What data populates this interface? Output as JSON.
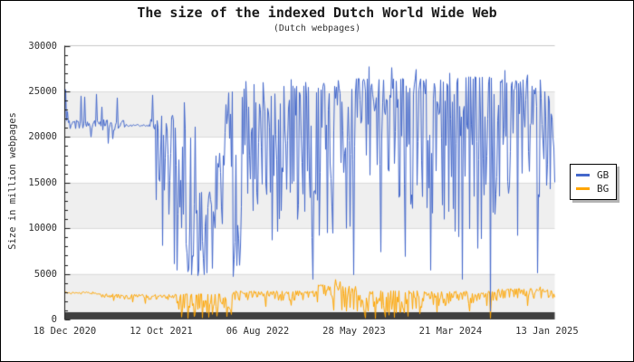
{
  "chart_data": {
    "type": "line",
    "title": "The size of the indexed Dutch World Wide Web",
    "subtitle": "(Dutch webpages)",
    "ylabel": "Size in million webpages",
    "ylim": [
      0,
      30000
    ],
    "ytick_interval": 5000,
    "yminor_interval": 1000,
    "ytick_labels": [
      "0",
      "5000",
      "10000",
      "15000",
      "20000",
      "25000",
      "30000"
    ],
    "x_span_days": 1514,
    "xticks": [
      {
        "day": 0,
        "label": "18 Dec 2020"
      },
      {
        "day": 298,
        "label": "12 Oct 2021"
      },
      {
        "day": 596,
        "label": "06 Aug 2022"
      },
      {
        "day": 894,
        "label": "28 May 2023"
      },
      {
        "day": 1192,
        "label": "21 Mar 2024"
      },
      {
        "day": 1490,
        "label": "13 Jan 2025"
      }
    ],
    "legend_position": "right-middle",
    "grid": "alternating horizontal bands every 5000",
    "series": [
      {
        "name": "GB",
        "color": "#4468cb",
        "seed": 1718,
        "summary": {
          "start": 21300,
          "end": 14300,
          "min": 900,
          "max": 27700,
          "description": "stable ~21300 until Aug 2021, then highly volatile 5000-26000 through 2022, mostly 12000-27500 in 2023-2024 with rare crashes near 0"
        },
        "envelope_segments": [
          [
            0,
            185,
            20700,
            21900,
            1.3
          ],
          [
            185,
            265,
            21150,
            21400,
            1.0
          ],
          [
            265,
            290,
            20700,
            22000,
            1.2
          ],
          [
            290,
            345,
            13500,
            22400,
            1.6
          ],
          [
            345,
            405,
            5200,
            21500,
            1.35
          ],
          [
            405,
            462,
            4800,
            14000,
            1.25
          ],
          [
            462,
            490,
            9800,
            19500,
            1.2
          ],
          [
            490,
            518,
            16500,
            25600,
            1.4
          ],
          [
            518,
            548,
            5200,
            21500,
            1.0
          ],
          [
            548,
            628,
            11000,
            26000,
            1.7
          ],
          [
            628,
            900,
            8800,
            25600,
            1.75
          ],
          [
            900,
            1155,
            11500,
            26400,
            2.1
          ],
          [
            1155,
            1335,
            8000,
            26600,
            1.95
          ],
          [
            1335,
            1475,
            12500,
            26300,
            2.1
          ],
          [
            1475,
            1514,
            13800,
            25600,
            1.1
          ]
        ],
        "events": [
          [
            3,
            25200
          ],
          [
            8,
            22800
          ],
          [
            50,
            24500
          ],
          [
            62,
            24400
          ],
          [
            80,
            20000
          ],
          [
            97,
            24700
          ],
          [
            115,
            23300
          ],
          [
            133,
            19300
          ],
          [
            148,
            19800
          ],
          [
            163,
            24300
          ],
          [
            272,
            24600
          ],
          [
            283,
            13100
          ],
          [
            302,
            8100
          ],
          [
            322,
            11500
          ],
          [
            338,
            6100
          ],
          [
            347,
            5400
          ],
          [
            369,
            23800
          ],
          [
            392,
            4900
          ],
          [
            412,
            4800
          ],
          [
            438,
            5100
          ],
          [
            455,
            5600
          ],
          [
            520,
            4700
          ],
          [
            532,
            5900
          ],
          [
            560,
            26100
          ],
          [
            640,
            8700
          ],
          [
            700,
            26300
          ],
          [
            745,
            26000
          ],
          [
            766,
            4400
          ],
          [
            800,
            25900
          ],
          [
            845,
            26200
          ],
          [
            893,
            4900
          ],
          [
            940,
            27700
          ],
          [
            977,
            7400
          ],
          [
            1010,
            27600
          ],
          [
            1053,
            6900
          ],
          [
            1085,
            27400
          ],
          [
            1130,
            5400
          ],
          [
            1190,
            27000
          ],
          [
            1228,
            4400
          ],
          [
            1275,
            7800
          ],
          [
            1316,
            900
          ],
          [
            1360,
            27300
          ],
          [
            1400,
            9200
          ],
          [
            1430,
            26800
          ],
          [
            1460,
            5100
          ],
          [
            1500,
            14300
          ]
        ]
      },
      {
        "name": "BG",
        "color": "#ffa500",
        "seed": 4242,
        "summary": {
          "start": 2900,
          "end": 2900,
          "min": 90,
          "max": 4380,
          "description": "stable ~2400-3000 with noisy dips toward 0 during late 2021-2022 and 2023-2024, brief spike ~4400 in mid 2023"
        },
        "envelope_segments": [
          [
            0,
            100,
            2780,
            3020,
            1.4
          ],
          [
            100,
            170,
            2380,
            2820,
            1.5
          ],
          [
            170,
            345,
            2150,
            2760,
            1.7
          ],
          [
            345,
            520,
            500,
            2800,
            2.1
          ],
          [
            520,
            780,
            2050,
            3120,
            1.9
          ],
          [
            780,
            900,
            1000,
            3800,
            1.7
          ],
          [
            900,
            1105,
            400,
            3150,
            2.2
          ],
          [
            1105,
            1335,
            1450,
            3100,
            2.0
          ],
          [
            1335,
            1514,
            2280,
            3380,
            1.7
          ]
        ],
        "events": [
          [
            150,
            2060
          ],
          [
            210,
            1900
          ],
          [
            250,
            1750
          ],
          [
            360,
            260
          ],
          [
            380,
            130
          ],
          [
            400,
            310
          ],
          [
            425,
            180
          ],
          [
            445,
            240
          ],
          [
            470,
            360
          ],
          [
            500,
            300
          ],
          [
            620,
            1400
          ],
          [
            700,
            1550
          ],
          [
            837,
            4380
          ],
          [
            850,
            4150
          ],
          [
            870,
            900
          ],
          [
            930,
            160
          ],
          [
            960,
            90
          ],
          [
            990,
            260
          ],
          [
            1020,
            210
          ],
          [
            1060,
            350
          ],
          [
            1150,
            800
          ],
          [
            1250,
            900
          ],
          [
            1316,
            130
          ],
          [
            1430,
            1500
          ],
          [
            1470,
            3580
          ]
        ]
      }
    ],
    "style": {
      "background": "#ffffff",
      "band_color": "#efefef",
      "grid_color": "#dcdcdc",
      "plot_border_top_color": "#c8c8c8",
      "axis_color": "#1a1a1a",
      "baseline_bar_color": "#3f3f3f",
      "text_color": "#303030",
      "legend_shadow_color": "#b4b4b4",
      "outer_border_color": "#000000"
    }
  }
}
